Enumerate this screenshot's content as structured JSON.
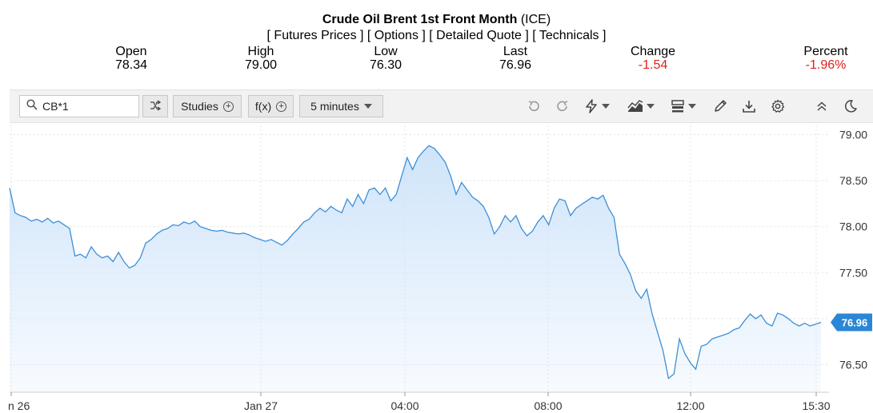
{
  "header": {
    "title_name": "Crude Oil Brent 1st Front Month",
    "title_exchange": "(ICE)",
    "links": [
      "[ Futures Prices ]",
      "[ Options ]",
      "[ Detailed Quote ]",
      "[ Technicals ]"
    ]
  },
  "quote": {
    "open": {
      "label": "Open",
      "value": "78.34"
    },
    "high": {
      "label": "High",
      "value": "79.00"
    },
    "low": {
      "label": "Low",
      "value": "76.30"
    },
    "last": {
      "label": "Last",
      "value": "76.96"
    },
    "change": {
      "label": "Change",
      "value": "-1.54"
    },
    "percent": {
      "label": "Percent",
      "value": "-1.96%"
    }
  },
  "toolbar": {
    "search_value": "CB*1",
    "studies_label": "Studies",
    "fx_label": "f(x)",
    "interval_label": "5 minutes",
    "icons": [
      "search-icon",
      "compare-icon",
      "undo-icon",
      "redo-icon",
      "flash-icon",
      "chart-type-icon",
      "layout-icon",
      "pencil-icon",
      "download-icon",
      "gear-icon",
      "collapse-icon",
      "theme-icon"
    ]
  },
  "colors": {
    "line": "#3d8fd6",
    "fill": "#d6e9fb",
    "last_badge": "#2b86d6",
    "negative": "#e0201b"
  },
  "chart_data": {
    "type": "area",
    "ylim": [
      76.2,
      79.1
    ],
    "yticks": [
      "79.00",
      "78.50",
      "78.00",
      "77.50",
      "77.00",
      "76.50"
    ],
    "xticks": [
      "n 26",
      "Jan 27",
      "04:00",
      "08:00",
      "12:00",
      "15:30"
    ],
    "last_value": "76.96",
    "values": [
      78.42,
      78.15,
      78.12,
      78.1,
      78.06,
      78.08,
      78.05,
      78.09,
      78.04,
      78.06,
      78.02,
      77.98,
      77.68,
      77.7,
      77.66,
      77.78,
      77.7,
      77.66,
      77.68,
      77.62,
      77.72,
      77.62,
      77.55,
      77.58,
      77.66,
      77.82,
      77.86,
      77.92,
      77.96,
      77.98,
      78.02,
      78.01,
      78.05,
      78.03,
      78.06,
      78.0,
      77.98,
      77.96,
      77.95,
      77.96,
      77.94,
      77.93,
      77.92,
      77.93,
      77.91,
      77.88,
      77.86,
      77.84,
      77.86,
      77.83,
      77.8,
      77.85,
      77.92,
      77.98,
      78.05,
      78.08,
      78.15,
      78.2,
      78.16,
      78.22,
      78.18,
      78.15,
      78.3,
      78.22,
      78.35,
      78.25,
      78.4,
      78.42,
      78.35,
      78.42,
      78.28,
      78.35,
      78.55,
      78.75,
      78.62,
      78.75,
      78.82,
      78.88,
      78.85,
      78.78,
      78.7,
      78.55,
      78.35,
      78.48,
      78.4,
      78.32,
      78.28,
      78.22,
      78.1,
      77.92,
      78.0,
      78.12,
      78.05,
      78.12,
      77.98,
      77.9,
      77.95,
      78.05,
      78.12,
      78.02,
      78.2,
      78.3,
      78.28,
      78.12,
      78.2,
      78.24,
      78.28,
      78.32,
      78.3,
      78.34,
      78.2,
      78.1,
      77.7,
      77.6,
      77.48,
      77.3,
      77.22,
      77.32,
      77.05,
      76.85,
      76.65,
      76.35,
      76.4,
      76.78,
      76.62,
      76.52,
      76.45,
      76.7,
      76.72,
      76.78,
      76.8,
      76.82,
      76.84,
      76.88,
      76.9,
      76.98,
      77.05,
      77.0,
      77.04,
      76.95,
      76.92,
      77.06,
      77.04,
      77.0,
      76.95,
      76.92,
      76.95,
      76.92,
      76.94,
      76.96
    ]
  }
}
